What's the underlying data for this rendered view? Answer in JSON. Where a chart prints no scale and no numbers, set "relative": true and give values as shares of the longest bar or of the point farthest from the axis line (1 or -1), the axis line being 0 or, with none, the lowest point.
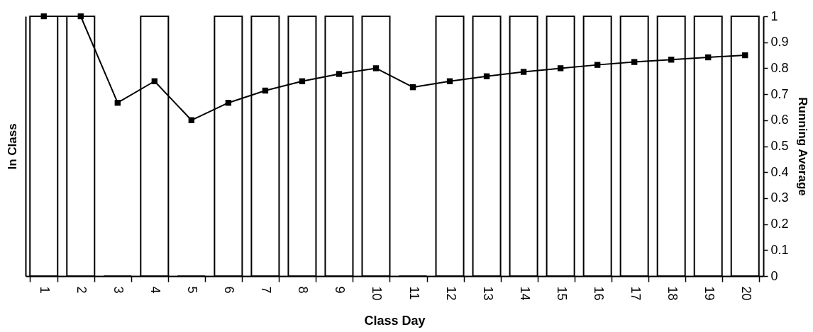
{
  "chart_data": {
    "type": "bar",
    "xlabel": "Class Day",
    "ylabel": "In Class",
    "y2label": "Running Average",
    "relative": true,
    "categories": [
      "1",
      "2",
      "3",
      "4",
      "5",
      "6",
      "7",
      "8",
      "9",
      "10",
      "11",
      "12",
      "13",
      "14",
      "15",
      "16",
      "17",
      "18",
      "19",
      "20"
    ],
    "series": [
      {
        "color": "#ffffff",
        "values": [
          1,
          1,
          0,
          1,
          0,
          1,
          1,
          1,
          1,
          1,
          0,
          1,
          1,
          1,
          1,
          1,
          1,
          1,
          1,
          1
        ]
      },
      {
        "type": "line",
        "axis": "y2",
        "color": "#000000",
        "values": [
          1,
          1,
          0.667,
          0.75,
          0.6,
          0.667,
          0.714,
          0.75,
          0.778,
          0.8,
          0.727,
          0.75,
          0.769,
          0.786,
          0.8,
          0.813,
          0.824,
          0.833,
          0.842,
          0.85
        ]
      }
    ],
    "marker": "square",
    "y2lim": [
      0,
      1
    ],
    "y2ticks": [
      0,
      0.1,
      0.2,
      0.3,
      0.4,
      0.5,
      0.6,
      0.7,
      0.8,
      0.9,
      1
    ]
  }
}
